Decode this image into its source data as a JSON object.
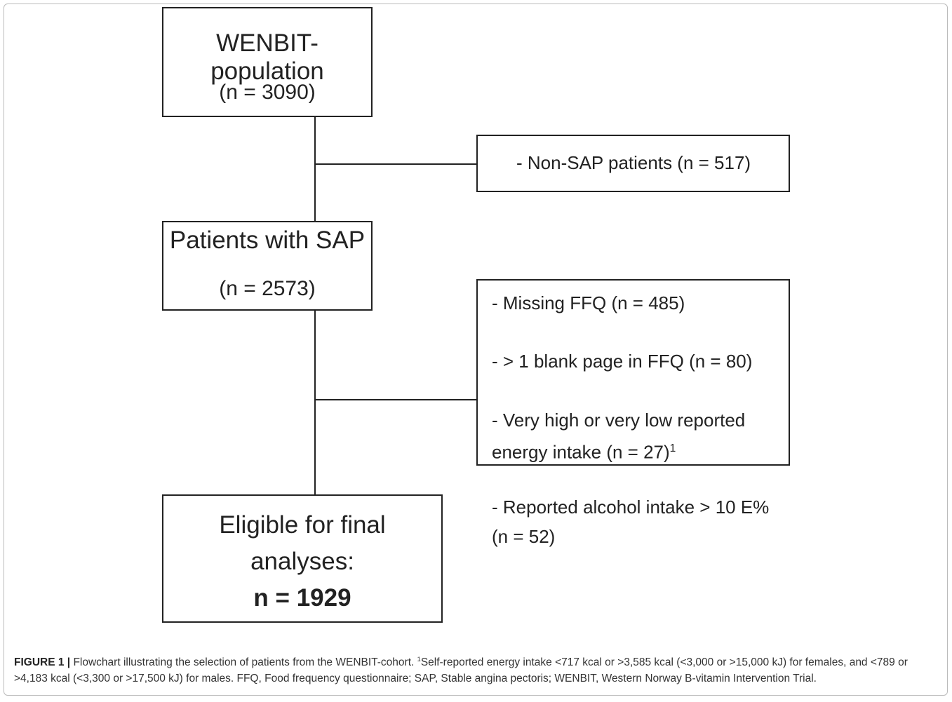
{
  "nodes": [
    {
      "lines": [
        "WENBIT-population",
        "(n = 3090)"
      ]
    },
    {
      "lines": [
        "Patients with SAP",
        "(n = 2573)"
      ]
    },
    {
      "lines": [
        "Eligible for final",
        "analyses:"
      ],
      "bold": "n = 1929"
    }
  ],
  "exclusions": [
    {
      "items": [
        {
          "lines": [
            "- Non-SAP patients (n = 517)"
          ]
        }
      ]
    },
    {
      "items": [
        {
          "lines": [
            "- Missing FFQ (n = 485)"
          ]
        },
        {
          "lines": [
            "- > 1 blank page in FFQ (n = 80)"
          ]
        },
        {
          "lines": [
            "- Very high or very low reported",
            "energy intake (n = 27)"
          ],
          "sup": "1"
        },
        {
          "lines": [
            "- Reported alcohol intake > 10 E%",
            "(n = 52)"
          ]
        }
      ]
    }
  ],
  "caption": {
    "label": "FIGURE 1 |",
    "text": "Flowchart illustrating the selection of patients from the WENBIT-cohort.",
    "footnote_mark": "1",
    "footnote": "Self-reported energy intake <717 kcal or >3,585 kcal (<3,000 or >15,000 kJ) for females, and <789 or >4,183 kcal (<3,300 or >17,500 kJ) for males. FFQ, Food frequency questionnaire; SAP, Stable angina pectoris; WENBIT, Western Norway B-vitamin Intervention Trial."
  }
}
